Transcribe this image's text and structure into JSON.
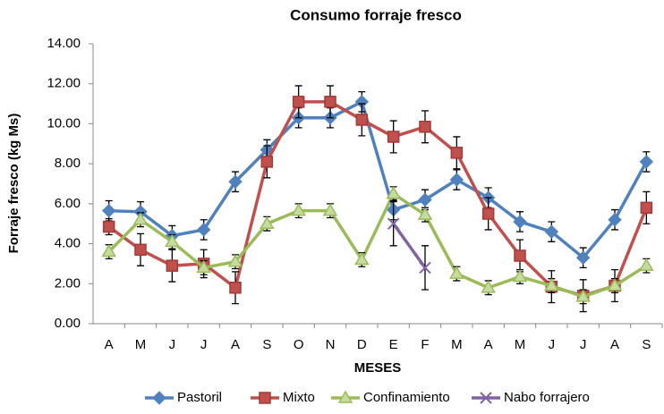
{
  "chart_data": {
    "type": "line",
    "title": "Consumo forraje fresco",
    "x_label": "MESES",
    "y_label": "Forraje fresco (kg Ms)",
    "categories": [
      "A",
      "M",
      "J",
      "J",
      "A",
      "S",
      "O",
      "N",
      "D",
      "E",
      "F",
      "M",
      "A",
      "M",
      "J",
      "J",
      "A",
      "S"
    ],
    "ylim": [
      0,
      14
    ],
    "yticks": [
      {
        "value": 0,
        "label": "0.00"
      },
      {
        "value": 2,
        "label": "2.00"
      },
      {
        "value": 4,
        "label": "4.00"
      },
      {
        "value": 6,
        "label": "6.00"
      },
      {
        "value": 8,
        "label": "8.00"
      },
      {
        "value": 10,
        "label": "10.00"
      },
      {
        "value": 12,
        "label": "12.00"
      },
      {
        "value": 14,
        "label": "14.00"
      }
    ],
    "grid": false,
    "legend": "bottom",
    "series": [
      {
        "name": "Pastoril",
        "color": "#4f81bd",
        "marker": "diamond",
        "values": [
          5.65,
          5.6,
          4.4,
          4.7,
          7.1,
          8.7,
          10.3,
          10.3,
          11.1,
          5.7,
          6.2,
          7.2,
          6.3,
          5.1,
          4.6,
          3.3,
          5.2,
          8.1
        ],
        "errors": [
          0.5,
          0.5,
          0.5,
          0.5,
          0.5,
          0.5,
          0.5,
          0.5,
          0.5,
          0.5,
          0.5,
          0.5,
          0.5,
          0.5,
          0.5,
          0.5,
          0.5,
          0.5
        ]
      },
      {
        "name": "Mixto",
        "color": "#c0504d",
        "marker": "square",
        "values": [
          4.85,
          3.7,
          2.9,
          3.0,
          1.8,
          8.1,
          11.1,
          11.1,
          10.2,
          9.35,
          9.85,
          8.55,
          5.5,
          3.4,
          1.85,
          1.4,
          1.9,
          5.8
        ],
        "errors": [
          0.4,
          0.8,
          0.8,
          0.7,
          0.8,
          0.8,
          0.8,
          0.8,
          0.8,
          0.8,
          0.8,
          0.8,
          0.8,
          0.8,
          0.8,
          0.8,
          0.8,
          0.8
        ]
      },
      {
        "name": "Confinamiento",
        "color": "#9bbb59",
        "marker": "triangle",
        "values": [
          3.6,
          5.2,
          4.1,
          2.8,
          3.1,
          5.0,
          5.65,
          5.65,
          3.2,
          6.5,
          5.45,
          2.5,
          1.8,
          2.35,
          1.9,
          1.35,
          1.9,
          2.9
        ],
        "errors": [
          0.35,
          0.35,
          0.35,
          0.35,
          0.35,
          0.35,
          0.35,
          0.35,
          0.35,
          0.35,
          0.35,
          0.35,
          0.35,
          0.35,
          0.35,
          0.35,
          0.35,
          0.35
        ]
      },
      {
        "name": "Nabo forrajero",
        "color": "#8064a2",
        "marker": "x",
        "values": [
          null,
          null,
          null,
          null,
          null,
          null,
          null,
          null,
          null,
          5.0,
          2.8,
          null,
          null,
          null,
          null,
          null,
          null,
          null
        ],
        "errors": [
          null,
          null,
          null,
          null,
          null,
          null,
          null,
          null,
          null,
          1.1,
          1.1,
          null,
          null,
          null,
          null,
          null,
          null,
          null
        ]
      }
    ]
  }
}
